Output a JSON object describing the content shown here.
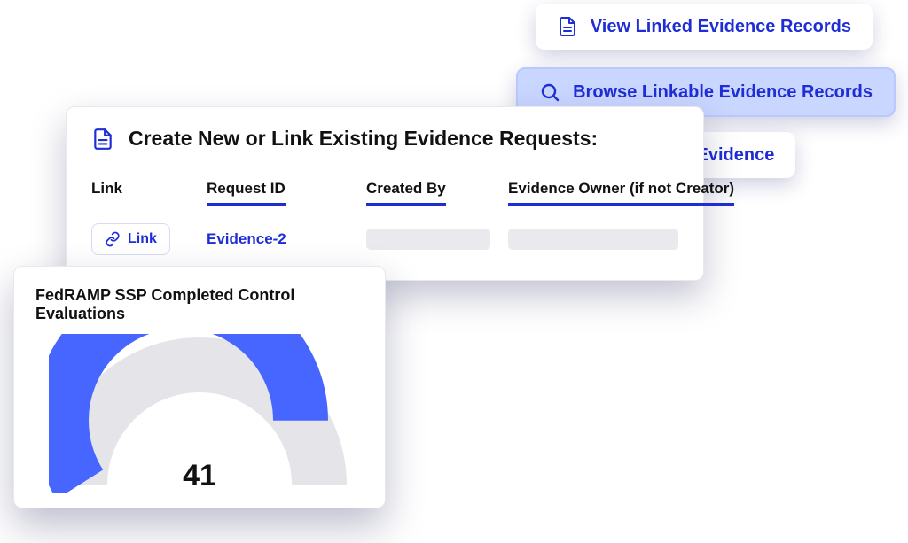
{
  "colors": {
    "accent": "#1f2dd6",
    "accent_fill_bg": "#c9d6ff",
    "card_border": "#e8e8ee",
    "placeholder": "#e9e9ee",
    "gauge_track": "#e4e4e9",
    "shadow": "rgba(20,24,80,0.25)"
  },
  "actions": {
    "view": {
      "label": "View Linked Evidence Records",
      "icon": "document"
    },
    "browse": {
      "label": "Browse Linkable Evidence Records",
      "icon": "search"
    },
    "create": {
      "label": "Create New Evidence",
      "icon": "plus"
    }
  },
  "main": {
    "title": "Create New or Link Existing Evidence Requests:",
    "columns": {
      "link": "Link",
      "request_id": "Request ID",
      "created_by": "Created By",
      "owner": "Evidence Owner (if not Creator)"
    },
    "row": {
      "link_label": "Link",
      "request_id": "Evidence-2"
    }
  },
  "gauge": {
    "title": "FedRAMP SSP Completed Control Evaluations",
    "value": 41,
    "value_text": "41",
    "percentage": 0.82,
    "track_color": "#e4e4e9",
    "arc_color": "#4666ff",
    "type": "semicircle-gauge"
  }
}
